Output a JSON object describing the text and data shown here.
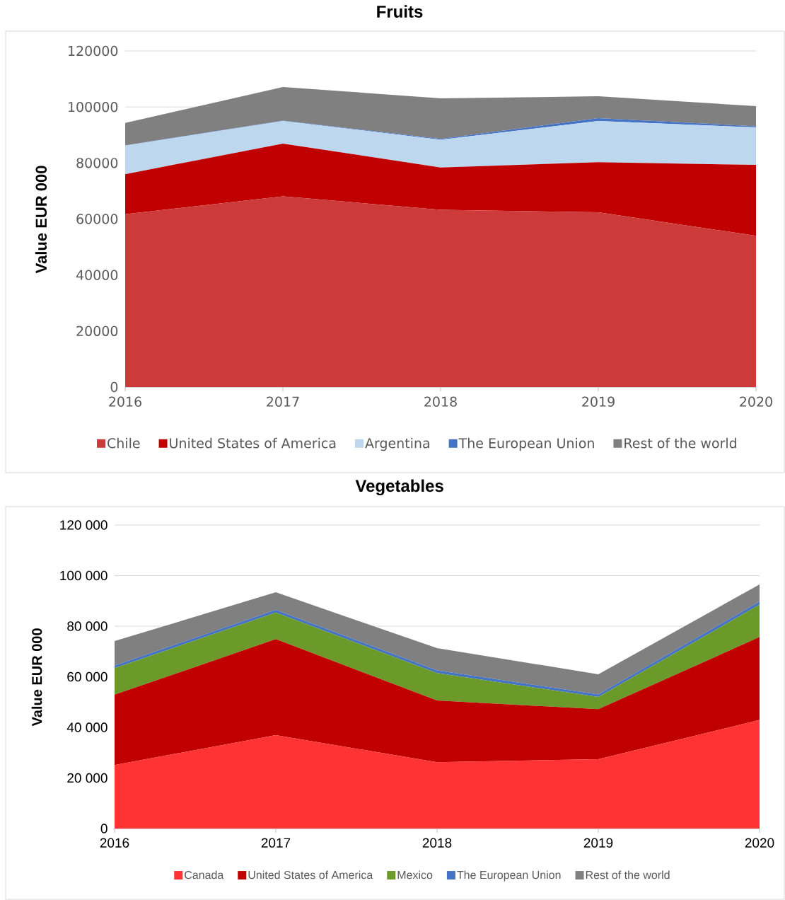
{
  "chart_data": [
    {
      "type": "area",
      "title": "Fruits",
      "ylabel": "Value EUR 000",
      "categories": [
        "2016",
        "2017",
        "2018",
        "2019",
        "2020"
      ],
      "stacked": true,
      "series": [
        {
          "name": "Chile",
          "color": "#cc3a3a",
          "values": [
            61700,
            68100,
            63300,
            62400,
            54000
          ]
        },
        {
          "name": "United States of America",
          "color": "#c00000",
          "values": [
            14300,
            18800,
            15100,
            17900,
            25300
          ]
        },
        {
          "name": "Argentina",
          "color": "#bdd7ee",
          "values": [
            10200,
            8100,
            9900,
            14700,
            13400
          ]
        },
        {
          "name": "The European Union",
          "color": "#4472c4",
          "values": [
            100,
            100,
            300,
            1000,
            400
          ]
        },
        {
          "name": "Rest of the world",
          "color": "#808080",
          "values": [
            8000,
            12000,
            14500,
            7800,
            7200
          ]
        }
      ],
      "ylim": [
        0,
        120000
      ],
      "yticks": [
        0,
        20000,
        40000,
        60000,
        80000,
        100000,
        120000
      ],
      "grid": "y",
      "legend": "bottom"
    },
    {
      "type": "area",
      "title": "Vegetables",
      "ylabel": "Value EUR 000",
      "categories": [
        "2016",
        "2017",
        "2018",
        "2019",
        "2020"
      ],
      "stacked": true,
      "series": [
        {
          "name": "Canada",
          "color": "#ff3333",
          "values": [
            25100,
            36900,
            26200,
            27400,
            42900
          ]
        },
        {
          "name": "United States of America",
          "color": "#c00000",
          "values": [
            27800,
            38000,
            24400,
            19800,
            32800
          ]
        },
        {
          "name": "Mexico",
          "color": "#6b9a2a",
          "values": [
            10500,
            10500,
            10900,
            4800,
            12800
          ]
        },
        {
          "name": "The European Union",
          "color": "#4472c4",
          "values": [
            1000,
            1000,
            1000,
            1000,
            1200
          ]
        },
        {
          "name": "Rest of the world",
          "color": "#808080",
          "values": [
            9700,
            7000,
            8800,
            8000,
            6800
          ]
        }
      ],
      "ylim": [
        0,
        120000
      ],
      "yticks": [
        {
          "value": 0,
          "label": "0"
        },
        {
          "value": 20000,
          "label": "20 000"
        },
        {
          "value": 40000,
          "label": "40 000"
        },
        {
          "value": 60000,
          "label": "60 000"
        },
        {
          "value": 80000,
          "label": "80 000"
        },
        {
          "value": 100000,
          "label": "100 000"
        },
        {
          "value": 120000,
          "label": "120 000"
        }
      ],
      "grid": "y",
      "legend": "bottom"
    }
  ]
}
